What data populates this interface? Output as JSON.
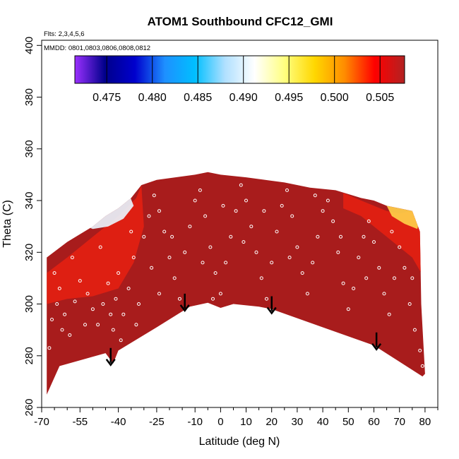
{
  "chart_data": {
    "type": "heatmap",
    "title": "ATOM1 Southbound CFC12_GMI",
    "flights_note": "Flts: 2,3,4,5,6",
    "dates_note": "MMDD: 0801,0803,0806,0808,0812",
    "xlabel": "Latitude (deg N)",
    "ylabel": "Theta (C)",
    "xlim": [
      -70,
      85
    ],
    "ylim": [
      260,
      402
    ],
    "x_ticks": [
      -70,
      -55,
      -40,
      -25,
      -10,
      0,
      10,
      20,
      30,
      40,
      50,
      60,
      70,
      80
    ],
    "x_minor_ticks": [
      -65,
      -60,
      -50,
      -45,
      -35,
      -30,
      -20,
      -15,
      -5,
      5,
      15,
      25,
      35,
      45,
      55,
      65,
      75,
      85
    ],
    "y_ticks": [
      260,
      280,
      300,
      320,
      340,
      360,
      380,
      400
    ],
    "colorbar": {
      "min": 0.4715,
      "max": 0.5077,
      "ticks": [
        0.475,
        0.48,
        0.485,
        0.49,
        0.495,
        0.5,
        0.505
      ],
      "tick_labels": [
        "0.475",
        "0.480",
        "0.485",
        "0.490",
        "0.495",
        "0.500",
        "0.505"
      ],
      "colors": [
        "#9b30ff",
        "#00008b",
        "#0000cd",
        "#1e90ff",
        "#00bfff",
        "#b0e0ff",
        "#ffffff",
        "#ffff80",
        "#ffd700",
        "#ff8c00",
        "#ff0000",
        "#b22222"
      ]
    },
    "field_color": "#a81c1c",
    "bottom_boundary": [
      [
        -68,
        265
      ],
      [
        -63,
        276
      ],
      [
        -45,
        281
      ],
      [
        -42,
        277
      ],
      [
        -40,
        282
      ],
      [
        -25,
        291
      ],
      [
        -12,
        299
      ],
      [
        -5,
        300.5
      ],
      [
        0,
        298.5
      ],
      [
        5,
        300
      ],
      [
        15,
        299
      ],
      [
        20,
        298
      ],
      [
        40,
        291
      ],
      [
        60,
        284
      ],
      [
        79,
        272
      ]
    ],
    "top_boundary": [
      [
        -68,
        318
      ],
      [
        -60,
        324
      ],
      [
        -55,
        327
      ],
      [
        -50,
        330
      ],
      [
        -45,
        334
      ],
      [
        -40,
        337
      ],
      [
        -35,
        341
      ],
      [
        -31,
        346
      ],
      [
        -25,
        348
      ],
      [
        -10,
        350
      ],
      [
        -5,
        351
      ],
      [
        0,
        350
      ],
      [
        10,
        349
      ],
      [
        25,
        347
      ],
      [
        35,
        345
      ],
      [
        45,
        344
      ],
      [
        55,
        341
      ],
      [
        60,
        340
      ],
      [
        65,
        338
      ],
      [
        70,
        337
      ],
      [
        75,
        336
      ],
      [
        78,
        328
      ],
      [
        78.5,
        300
      ],
      [
        80,
        273
      ]
    ],
    "arrows": [
      [
        -43,
        283
      ],
      [
        -14,
        304
      ],
      [
        20,
        303
      ],
      [
        61,
        289
      ]
    ],
    "high_zone_regions": [
      {
        "name": "south-low-region",
        "points": [
          [
            -68,
            312
          ],
          [
            -60,
            318
          ],
          [
            -55,
            322
          ],
          [
            -50,
            326
          ],
          [
            -45,
            330
          ],
          [
            -40,
            334
          ],
          [
            -36,
            338
          ],
          [
            -33,
            341
          ],
          [
            -31,
            346
          ],
          [
            -30,
            330
          ],
          [
            -34,
            316
          ],
          [
            -40,
            306
          ],
          [
            -50,
            303
          ],
          [
            -60,
            302
          ],
          [
            -68,
            300
          ]
        ]
      },
      {
        "name": "north-low-region",
        "points": [
          [
            48,
            343
          ],
          [
            55,
            340
          ],
          [
            60,
            338
          ],
          [
            65,
            336
          ],
          [
            70,
            335
          ],
          [
            75,
            336
          ],
          [
            78,
            328
          ],
          [
            78.5,
            312
          ],
          [
            75,
            318
          ],
          [
            70,
            322
          ],
          [
            65,
            326
          ],
          [
            60,
            330
          ],
          [
            55,
            334
          ],
          [
            48,
            337
          ]
        ]
      }
    ],
    "low_zone_regions": [
      {
        "name": "south-white-region",
        "points": [
          [
            -60,
            336
          ],
          [
            -55,
            339
          ],
          [
            -50,
            341
          ],
          [
            -45,
            343
          ],
          [
            -40,
            344
          ],
          [
            -36,
            343
          ],
          [
            -34,
            338
          ],
          [
            -38,
            333
          ],
          [
            -44,
            330
          ],
          [
            -50,
            329
          ],
          [
            -55,
            331
          ],
          [
            -60,
            332
          ]
        ]
      },
      {
        "name": "north-yellow-region",
        "points": [
          [
            65,
            338
          ],
          [
            70,
            337
          ],
          [
            75,
            336
          ],
          [
            78,
            333
          ],
          [
            77,
            329
          ],
          [
            72,
            331
          ],
          [
            67,
            334
          ]
        ]
      }
    ],
    "sample_points": [
      [
        -67,
        283
      ],
      [
        -66,
        294
      ],
      [
        -64,
        300
      ],
      [
        -63,
        306
      ],
      [
        -61,
        296
      ],
      [
        -59,
        288
      ],
      [
        -57,
        301
      ],
      [
        -55,
        309
      ],
      [
        -52,
        304
      ],
      [
        -50,
        298
      ],
      [
        -48,
        292
      ],
      [
        -46,
        300
      ],
      [
        -44,
        308
      ],
      [
        -43,
        296
      ],
      [
        -42,
        290
      ],
      [
        -41,
        302
      ],
      [
        -40,
        312
      ],
      [
        -38,
        296
      ],
      [
        -36,
        306
      ],
      [
        -34,
        318
      ],
      [
        -32,
        300
      ],
      [
        -30,
        326
      ],
      [
        -28,
        334
      ],
      [
        -26,
        342
      ],
      [
        -24,
        336
      ],
      [
        -22,
        328
      ],
      [
        -20,
        318
      ],
      [
        -18,
        310
      ],
      [
        -16,
        302
      ],
      [
        -14,
        320
      ],
      [
        -12,
        330
      ],
      [
        -10,
        340
      ],
      [
        -8,
        344
      ],
      [
        -6,
        334
      ],
      [
        -4,
        322
      ],
      [
        -2,
        312
      ],
      [
        0,
        304
      ],
      [
        2,
        316
      ],
      [
        4,
        326
      ],
      [
        6,
        336
      ],
      [
        8,
        346
      ],
      [
        10,
        340
      ],
      [
        12,
        330
      ],
      [
        14,
        320
      ],
      [
        16,
        310
      ],
      [
        18,
        302
      ],
      [
        20,
        316
      ],
      [
        22,
        328
      ],
      [
        24,
        338
      ],
      [
        26,
        344
      ],
      [
        28,
        334
      ],
      [
        30,
        322
      ],
      [
        32,
        312
      ],
      [
        34,
        304
      ],
      [
        36,
        316
      ],
      [
        38,
        326
      ],
      [
        40,
        336
      ],
      [
        42,
        340
      ],
      [
        44,
        332
      ],
      [
        46,
        320
      ],
      [
        48,
        308
      ],
      [
        50,
        298
      ],
      [
        52,
        306
      ],
      [
        54,
        318
      ],
      [
        56,
        326
      ],
      [
        58,
        332
      ],
      [
        60,
        324
      ],
      [
        62,
        314
      ],
      [
        64,
        304
      ],
      [
        66,
        296
      ],
      [
        68,
        310
      ],
      [
        70,
        322
      ],
      [
        72,
        314
      ],
      [
        74,
        300
      ],
      [
        76,
        290
      ],
      [
        78,
        282
      ],
      [
        79,
        276
      ],
      [
        -65,
        312
      ],
      [
        -58,
        318
      ],
      [
        -47,
        322
      ],
      [
        -35,
        328
      ],
      [
        -27,
        314
      ],
      [
        -19,
        326
      ],
      [
        -7,
        316
      ],
      [
        1,
        338
      ],
      [
        9,
        324
      ],
      [
        17,
        336
      ],
      [
        27,
        318
      ],
      [
        37,
        342
      ],
      [
        47,
        326
      ],
      [
        57,
        310
      ],
      [
        67,
        328
      ],
      [
        75,
        310
      ],
      [
        -62,
        290
      ],
      [
        -53,
        292
      ],
      [
        -39,
        286
      ],
      [
        -33,
        292
      ],
      [
        -24,
        304
      ],
      [
        -15,
        296
      ],
      [
        -3,
        302
      ]
    ]
  }
}
